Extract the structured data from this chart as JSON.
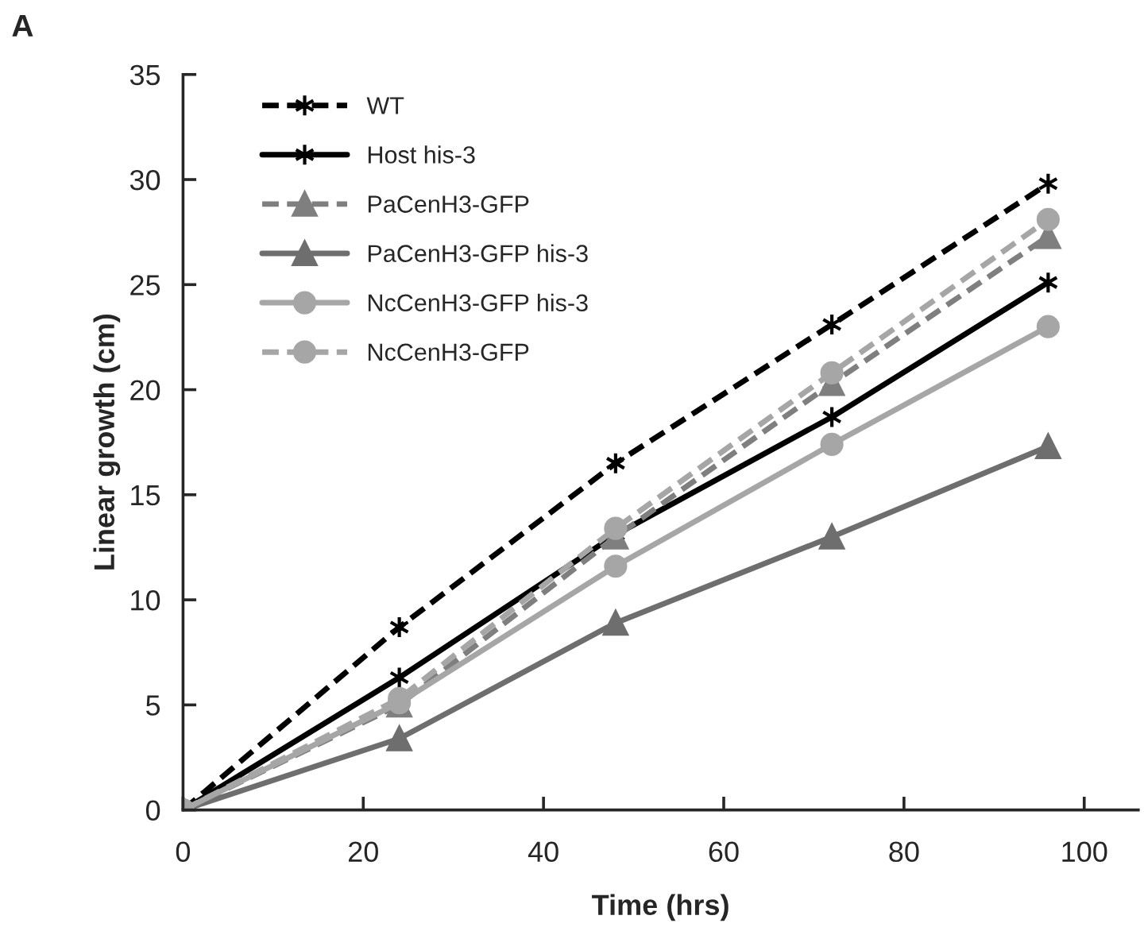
{
  "chart_data": {
    "type": "line",
    "xlabel": "Time (hrs)",
    "ylabel": "Linear growth (cm)",
    "annotations": [
      "A"
    ],
    "x": [
      0,
      24,
      48,
      72,
      96
    ],
    "xlim": [
      0,
      106
    ],
    "xticks": [
      0,
      20,
      40,
      60,
      80,
      100
    ],
    "ylim": [
      0,
      35
    ],
    "yticks": [
      0,
      5,
      10,
      15,
      20,
      25,
      30,
      35
    ],
    "grid": false,
    "legend": "top left",
    "series": [
      {
        "name": "WT",
        "color": "#000000",
        "line_style": "dashed",
        "marker": "cross",
        "values": [
          0,
          8.7,
          16.5,
          23.1,
          29.8
        ]
      },
      {
        "name": "Host his-3",
        "color": "#000000",
        "line_style": "solid",
        "marker": "cross",
        "values": [
          0,
          6.3,
          13.1,
          18.7,
          25.1
        ]
      },
      {
        "name": "PaCenH3-GFP",
        "color": "#7f7f7f",
        "line_style": "dashed",
        "marker": "triangle",
        "values": [
          0,
          5.0,
          13.0,
          20.3,
          27.3
        ]
      },
      {
        "name": "PaCenH3-GFP his-3",
        "color": "#6e6e6e",
        "line_style": "solid",
        "marker": "triangle",
        "values": [
          0,
          3.4,
          8.9,
          13.0,
          17.3
        ]
      },
      {
        "name": "NcCenH3-GFP his-3",
        "color": "#a6a6a6",
        "line_style": "solid",
        "marker": "circle",
        "values": [
          0,
          5.1,
          11.6,
          17.4,
          23.0
        ]
      },
      {
        "name": "NcCenH3-GFP",
        "color": "#a6a6a6",
        "line_style": "dashed",
        "marker": "circle",
        "values": [
          0,
          5.3,
          13.4,
          20.8,
          28.1
        ]
      }
    ]
  }
}
